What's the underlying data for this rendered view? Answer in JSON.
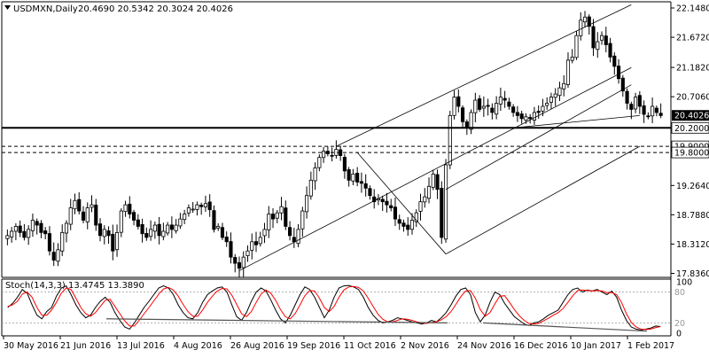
{
  "header": {
    "symbol": "USDMXN,Daily",
    "ohlc": "20.4690 20.5342 20.3024 20.4026"
  },
  "colors": {
    "background": "#ffffff",
    "candle": "#000000",
    "channel": "#000000",
    "stoch_main": "#000000",
    "stoch_signal": "#ff0000",
    "current_price_box": "#000000",
    "level_line": "#000000"
  },
  "chart_data": [
    {
      "type": "candlestick",
      "title": "USDMXN,Daily",
      "x_tick_labels": [
        "30 May 2016",
        "21 Jun 2016",
        "13 Jul 2016",
        "4 Aug 2016",
        "26 Aug 2016",
        "19 Sep 2016",
        "11 Oct 2016",
        "2 Nov 2016",
        "24 Nov 2016",
        "16 Dec 2016",
        "10 Jan 2017",
        "1 Feb 2017"
      ],
      "y_tick_labels": [
        "22.1480",
        "21.6720",
        "21.1820",
        "20.7060",
        "19.2640",
        "18.7880",
        "18.3120",
        "17.8360"
      ],
      "ylim": [
        17.8,
        22.22
      ],
      "current_price": 20.4026,
      "current_price_label": "20.4026",
      "horizontal_levels": [
        {
          "value": 20.2,
          "label": "20.2000",
          "style": "solid"
        },
        {
          "value": 19.9,
          "label": "19.9000",
          "style": "dashed"
        },
        {
          "value": 19.8,
          "label": "19.8000",
          "style": "dashed"
        }
      ],
      "close_series": [
        18.45,
        18.52,
        18.6,
        18.5,
        18.42,
        18.55,
        18.7,
        18.62,
        18.5,
        18.48,
        18.2,
        18.05,
        18.22,
        18.5,
        18.65,
        18.9,
        19.02,
        18.85,
        18.7,
        18.9,
        18.95,
        18.62,
        18.45,
        18.55,
        18.45,
        18.2,
        18.5,
        18.85,
        18.95,
        18.8,
        18.7,
        18.6,
        18.48,
        18.42,
        18.55,
        18.62,
        18.45,
        18.52,
        18.62,
        18.55,
        18.62,
        18.72,
        18.8,
        18.9,
        18.88,
        18.95,
        18.92,
        18.97,
        18.87,
        18.55,
        18.6,
        18.42,
        18.35,
        18.1,
        18.0,
        17.92,
        18.1,
        18.2,
        18.35,
        18.3,
        18.42,
        18.55,
        18.8,
        18.72,
        18.82,
        18.92,
        18.6,
        18.45,
        18.35,
        18.55,
        18.85,
        19.1,
        19.35,
        19.55,
        19.72,
        19.82,
        19.78,
        19.75,
        19.85,
        19.75,
        19.5,
        19.35,
        19.45,
        19.32,
        19.3,
        19.22,
        19.1,
        19.0,
        19.05,
        19.0,
        18.95,
        18.9,
        18.72,
        18.65,
        18.6,
        18.55,
        18.7,
        18.82,
        19.0,
        19.08,
        19.25,
        19.45,
        19.2,
        18.42,
        19.6,
        20.4,
        20.7,
        20.55,
        20.3,
        20.2,
        20.45,
        20.65,
        20.5,
        20.55,
        20.55,
        20.45,
        20.6,
        20.7,
        20.65,
        20.55,
        20.45,
        20.4,
        20.35,
        20.38,
        20.35,
        20.45,
        20.45,
        20.55,
        20.6,
        20.7,
        20.75,
        20.85,
        20.92,
        21.3,
        21.35,
        21.7,
        21.95,
        22.0,
        21.85,
        21.5,
        21.6,
        21.7,
        21.55,
        21.35,
        21.2,
        21.0,
        20.8,
        20.6,
        20.5,
        20.7,
        20.55,
        20.42,
        20.38,
        20.55,
        20.45,
        20.4
      ]
    },
    {
      "type": "line",
      "title": "Stoch(14,3,3) 13.4745 13.3890",
      "ylim": [
        0,
        100
      ],
      "y_tick_labels": [
        "100",
        "0"
      ],
      "levels": [
        80,
        20
      ],
      "level_labels": [
        "80",
        "20"
      ],
      "series": [
        {
          "name": "Stoch(14,3,3) main",
          "values": [
            50,
            58,
            70,
            85,
            78,
            55,
            35,
            28,
            42,
            50,
            72,
            88,
            92,
            75,
            55,
            40,
            30,
            35,
            50,
            62,
            70,
            60,
            40,
            25,
            12,
            8,
            20,
            35,
            50,
            62,
            75,
            88,
            92,
            88,
            75,
            55,
            40,
            30,
            28,
            40,
            60,
            75,
            82,
            88,
            90,
            80,
            55,
            32,
            25,
            40,
            62,
            80,
            88,
            82,
            65,
            45,
            28,
            20,
            35,
            55,
            75,
            90,
            85,
            70,
            50,
            30,
            45,
            70,
            88,
            92,
            93,
            90,
            85,
            70,
            50,
            35,
            25,
            20,
            22,
            25,
            30,
            28,
            25,
            22,
            20,
            18,
            20,
            25,
            22,
            30,
            40,
            55,
            72,
            85,
            88,
            75,
            40,
            22,
            35,
            60,
            80,
            75,
            58,
            45,
            32,
            25,
            18,
            15,
            20,
            22,
            28,
            35,
            40,
            45,
            60,
            75,
            85,
            88,
            80,
            84,
            82,
            85,
            80,
            75,
            82,
            70,
            45,
            25,
            12,
            8,
            6,
            8,
            10,
            14,
            13
          ]
        },
        {
          "name": "Stoch(14,3,3) signal",
          "values": [
            52,
            55,
            62,
            76,
            80,
            70,
            50,
            35,
            35,
            45,
            60,
            78,
            88,
            85,
            68,
            50,
            38,
            33,
            40,
            52,
            64,
            66,
            52,
            38,
            24,
            14,
            14,
            25,
            38,
            50,
            63,
            76,
            86,
            89,
            84,
            72,
            56,
            42,
            33,
            33,
            45,
            60,
            72,
            82,
            87,
            86,
            74,
            56,
            38,
            32,
            42,
            60,
            76,
            84,
            78,
            64,
            46,
            32,
            28,
            38,
            55,
            73,
            83,
            82,
            68,
            50,
            42,
            52,
            70,
            84,
            90,
            91,
            89,
            82,
            68,
            52,
            37,
            27,
            22,
            22,
            25,
            28,
            27,
            25,
            22,
            20,
            19,
            21,
            22,
            26,
            32,
            42,
            56,
            71,
            82,
            83,
            68,
            46,
            33,
            40,
            57,
            72,
            73,
            60,
            46,
            34,
            25,
            19,
            18,
            19,
            24,
            29,
            35,
            40,
            48,
            60,
            73,
            83,
            84,
            83,
            82,
            83,
            82,
            79,
            79,
            75,
            60,
            38,
            21,
            12,
            8,
            7,
            8,
            11,
            13
          ]
        }
      ]
    }
  ]
}
